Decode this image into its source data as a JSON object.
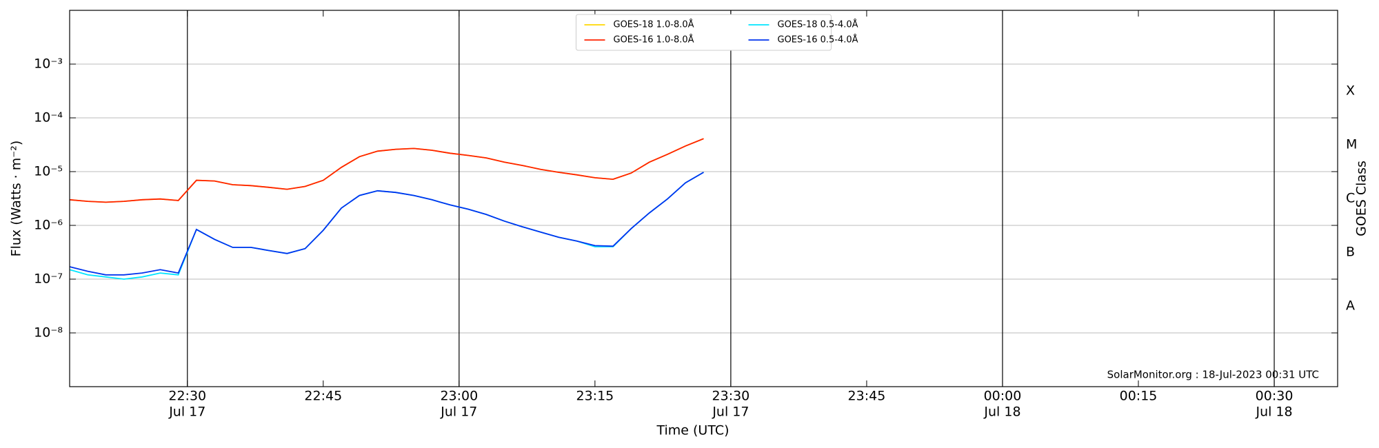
{
  "chart_data": {
    "type": "line",
    "log_y": true,
    "grid": "y",
    "legend": "upper center",
    "xlabel": "Time (UTC)",
    "ylabel": "Flux (Watts · m⁻²)",
    "y2label": "GOES Class",
    "annotation": "SolarMonitor.org : 18-Jul-2023 00:31 UTC",
    "xlim": [
      "Jul 17 22:17",
      "Jul 18 00:37"
    ],
    "xticks": [
      {
        "value": "Jul 17 22:30",
        "label": [
          "22:30",
          "Jul 17"
        ]
      },
      {
        "value": "Jul 17 22:45",
        "label": [
          "22:45"
        ]
      },
      {
        "value": "Jul 17 23:00",
        "label": [
          "23:00",
          "Jul 17"
        ]
      },
      {
        "value": "Jul 17 23:15",
        "label": [
          "23:15"
        ]
      },
      {
        "value": "Jul 17 23:30",
        "label": [
          "23:30",
          "Jul 17"
        ]
      },
      {
        "value": "Jul 17 23:45",
        "label": [
          "23:45"
        ]
      },
      {
        "value": "Jul 18 00:00",
        "label": [
          "00:00",
          "Jul 18"
        ]
      },
      {
        "value": "Jul 18 00:15",
        "label": [
          "00:15"
        ]
      },
      {
        "value": "Jul 18 00:30",
        "label": [
          "00:30",
          "Jul 18"
        ]
      }
    ],
    "vlines": [
      "Jul 17 22:30",
      "Jul 17 23:00",
      "Jul 17 23:30",
      "Jul 18 00:00",
      "Jul 18 00:30"
    ],
    "ylim": [
      1e-09,
      0.01
    ],
    "yticks": [
      {
        "value": 1e-08,
        "label": "10⁻⁸"
      },
      {
        "value": 1e-07,
        "label": "10⁻⁷"
      },
      {
        "value": 1e-06,
        "label": "10⁻⁶"
      },
      {
        "value": 1e-05,
        "label": "10⁻⁵"
      },
      {
        "value": 0.0001,
        "label": "10⁻⁴"
      },
      {
        "value": 0.001,
        "label": "10⁻³"
      }
    ],
    "y2lim": [
      1e-09,
      0.01
    ],
    "y2ticks": [
      {
        "value": 3.16e-08,
        "label": "A"
      },
      {
        "value": 3.16e-07,
        "label": "B"
      },
      {
        "value": 3.16e-06,
        "label": "C"
      },
      {
        "value": 3.16e-05,
        "label": "M"
      },
      {
        "value": 0.000316,
        "label": "X"
      }
    ],
    "x": [
      "Jul 17 22:17",
      "Jul 17 22:19",
      "Jul 17 22:21",
      "Jul 17 22:23",
      "Jul 17 22:25",
      "Jul 17 22:27",
      "Jul 17 22:29",
      "Jul 17 22:31",
      "Jul 17 22:33",
      "Jul 17 22:35",
      "Jul 17 22:37",
      "Jul 17 22:39",
      "Jul 17 22:41",
      "Jul 17 22:43",
      "Jul 17 22:45",
      "Jul 17 22:47",
      "Jul 17 22:49",
      "Jul 17 22:51",
      "Jul 17 22:53",
      "Jul 17 22:55",
      "Jul 17 22:57",
      "Jul 17 22:59",
      "Jul 17 23:01",
      "Jul 17 23:03",
      "Jul 17 23:05",
      "Jul 17 23:07",
      "Jul 17 23:09",
      "Jul 17 23:11",
      "Jul 17 23:13",
      "Jul 17 23:15",
      "Jul 17 23:17",
      "Jul 17 23:19",
      "Jul 17 23:21",
      "Jul 17 23:23",
      "Jul 17 23:25",
      "Jul 17 23:27"
    ],
    "series": [
      {
        "name": "GOES-18 1.0-8.0Å",
        "color": "#ffd700",
        "values": [
          3e-06,
          2.8e-06,
          2.7e-06,
          2.8e-06,
          3e-06,
          3.1e-06,
          2.9e-06,
          6.9e-06,
          6.7e-06,
          5.7e-06,
          5.5e-06,
          5.1e-06,
          4.7e-06,
          5.3e-06,
          6.9e-06,
          1.2e-05,
          1.9e-05,
          2.4e-05,
          2.6e-05,
          2.7e-05,
          2.5e-05,
          2.2e-05,
          2e-05,
          1.8e-05,
          1.5e-05,
          1.3e-05,
          1.1e-05,
          9.7e-06,
          8.7e-06,
          7.7e-06,
          7.2e-06,
          9.4e-06,
          1.5e-05,
          2.1e-05,
          3e-05,
          4.1e-05
        ]
      },
      {
        "name": "GOES-16 1.0-8.0Å",
        "color": "#ff2200",
        "values": [
          3e-06,
          2.8e-06,
          2.7e-06,
          2.8e-06,
          3e-06,
          3.1e-06,
          2.9e-06,
          6.9e-06,
          6.7e-06,
          5.7e-06,
          5.5e-06,
          5.1e-06,
          4.7e-06,
          5.3e-06,
          6.9e-06,
          1.2e-05,
          1.9e-05,
          2.4e-05,
          2.6e-05,
          2.7e-05,
          2.5e-05,
          2.2e-05,
          2e-05,
          1.8e-05,
          1.5e-05,
          1.3e-05,
          1.1e-05,
          9.7e-06,
          8.7e-06,
          7.7e-06,
          7.2e-06,
          9.4e-06,
          1.5e-05,
          2.1e-05,
          3e-05,
          4.1e-05
        ]
      },
      {
        "name": "GOES-18 0.5-4.0Å",
        "color": "#00e5ff",
        "values": [
          1.5e-07,
          1.2e-07,
          1.1e-07,
          1e-07,
          1.1e-07,
          1.3e-07,
          1.2e-07,
          8.4e-07,
          5.5e-07,
          3.9e-07,
          3.9e-07,
          3.4e-07,
          3e-07,
          3.7e-07,
          8.1e-07,
          2.1e-06,
          3.6e-06,
          4.4e-06,
          4.1e-06,
          3.6e-06,
          3e-06,
          2.4e-06,
          2e-06,
          1.6e-06,
          1.2e-06,
          9.4e-07,
          7.5e-07,
          6e-07,
          5.1e-07,
          4e-07,
          4e-07,
          8.7e-07,
          1.7e-06,
          3.1e-06,
          6.2e-06,
          9.7e-06
        ]
      },
      {
        "name": "GOES-16 0.5-4.0Å",
        "color": "#0033ee",
        "values": [
          1.7e-07,
          1.4e-07,
          1.2e-07,
          1.2e-07,
          1.3e-07,
          1.5e-07,
          1.3e-07,
          8.4e-07,
          5.5e-07,
          3.9e-07,
          3.9e-07,
          3.4e-07,
          3e-07,
          3.7e-07,
          8.1e-07,
          2.1e-06,
          3.6e-06,
          4.4e-06,
          4.1e-06,
          3.6e-06,
          3e-06,
          2.4e-06,
          2e-06,
          1.6e-06,
          1.2e-06,
          9.4e-07,
          7.5e-07,
          6e-07,
          5.1e-07,
          4.2e-07,
          4.1e-07,
          8.7e-07,
          1.7e-06,
          3.1e-06,
          6.2e-06,
          9.7e-06
        ]
      }
    ]
  }
}
